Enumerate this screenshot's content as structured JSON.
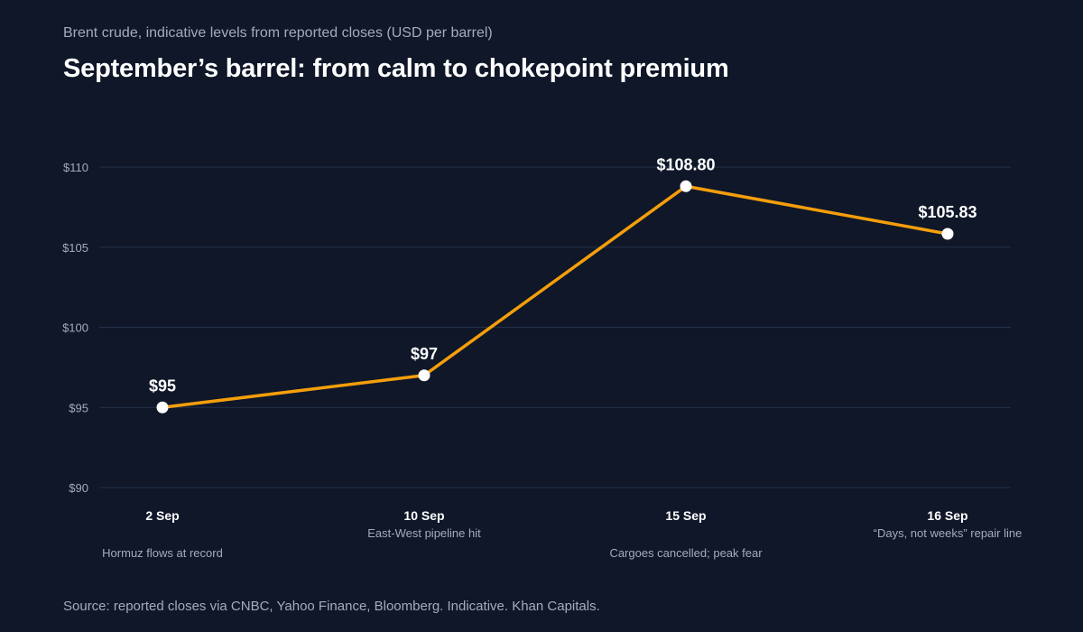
{
  "header": {
    "subtitle": "Brent crude, indicative levels from reported closes (USD per barrel)",
    "title": "September’s barrel: from calm to chokepoint premium"
  },
  "footer": {
    "source": "Source: reported closes via CNBC, Yahoo Finance, Bloomberg. Indicative. Khan Capitals."
  },
  "colors": {
    "background": "#0f1729",
    "line": "#f59e0b",
    "point": "#ffffff",
    "grid": "#233049"
  },
  "chart_data": {
    "type": "line",
    "title": "September’s barrel: from calm to chokepoint premium",
    "subtitle": "Brent crude, indicative levels from reported closes (USD per barrel)",
    "xlabel": "",
    "ylabel": "",
    "categories": [
      "2 Sep",
      "10 Sep",
      "15 Sep",
      "16 Sep"
    ],
    "values": [
      95,
      97,
      108.8,
      105.83
    ],
    "data_labels": [
      "$95",
      "$97",
      "$108.80",
      "$105.83"
    ],
    "annotations": [
      "Hormuz flows at record",
      "East-West pipeline hit",
      "Cargoes cancelled; peak fear",
      "“Days, not weeks” repair line"
    ],
    "ylim": [
      90,
      110
    ],
    "yticks": [
      90,
      95,
      100,
      105,
      110
    ],
    "ytick_labels": [
      "$90",
      "$95",
      "$100",
      "$105",
      "$110"
    ],
    "grid": true,
    "legend": "none"
  }
}
